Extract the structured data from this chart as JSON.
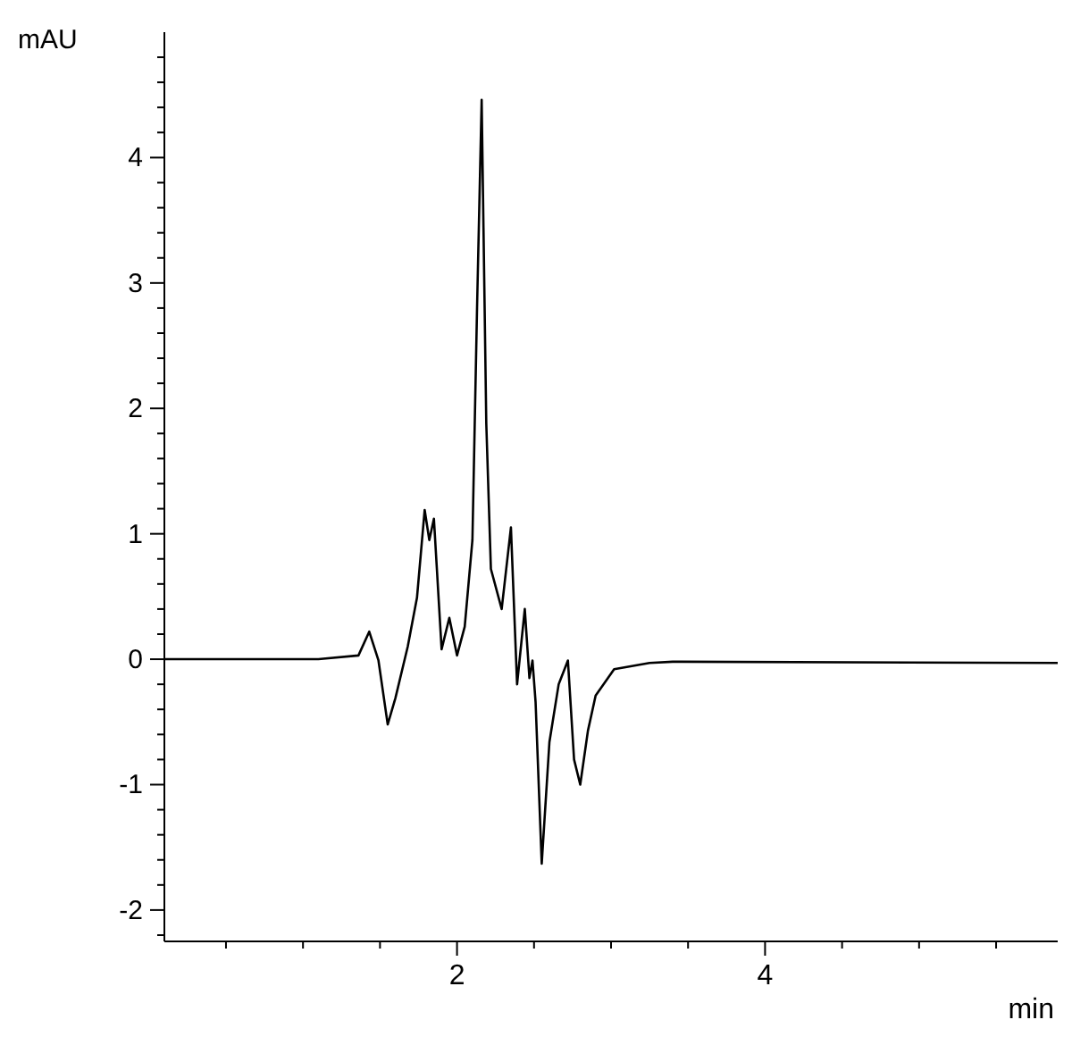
{
  "chart_data": {
    "type": "line",
    "xlabel": "min",
    "ylabel": "mAU",
    "grid": false,
    "legend": false,
    "marker": "none",
    "line_style": "solid",
    "xlim": [
      0.1,
      5.9
    ],
    "ylim": [
      -2.25,
      5
    ],
    "xticks": [
      {
        "value": 0.5,
        "label": null
      },
      {
        "value": 1,
        "label": null
      },
      {
        "value": 1.5,
        "label": null
      },
      2,
      {
        "value": 2.5,
        "label": null
      },
      {
        "value": 3,
        "label": null
      },
      {
        "value": 3.5,
        "label": null
      },
      4,
      {
        "value": 4.5,
        "label": null
      },
      {
        "value": 5,
        "label": null
      },
      {
        "value": 5.5,
        "label": null
      }
    ],
    "yticks": [
      {
        "value": -2.2,
        "label": null
      },
      -2,
      {
        "value": -1.8,
        "label": null
      },
      {
        "value": -1.6,
        "label": null
      },
      {
        "value": -1.4,
        "label": null
      },
      {
        "value": -1.2,
        "label": null
      },
      -1,
      {
        "value": -0.8,
        "label": null
      },
      {
        "value": -0.6,
        "label": null
      },
      {
        "value": -0.4,
        "label": null
      },
      {
        "value": -0.2,
        "label": null
      },
      0,
      {
        "value": 0.2,
        "label": null
      },
      {
        "value": 0.4,
        "label": null
      },
      {
        "value": 0.6,
        "label": null
      },
      {
        "value": 0.8,
        "label": null
      },
      1,
      {
        "value": 1.2,
        "label": null
      },
      {
        "value": 1.4,
        "label": null
      },
      {
        "value": 1.6,
        "label": null
      },
      {
        "value": 1.8,
        "label": null
      },
      2,
      {
        "value": 2.2,
        "label": null
      },
      {
        "value": 2.4,
        "label": null
      },
      {
        "value": 2.6,
        "label": null
      },
      {
        "value": 2.8,
        "label": null
      },
      3,
      {
        "value": 3.2,
        "label": null
      },
      {
        "value": 3.4,
        "label": null
      },
      {
        "value": 3.6,
        "label": null
      },
      {
        "value": 3.8,
        "label": null
      },
      4,
      {
        "value": 4.2,
        "label": null
      },
      {
        "value": 4.4,
        "label": null
      },
      {
        "value": 4.6,
        "label": null
      },
      {
        "value": 4.8,
        "label": null
      }
    ],
    "x": [
      0.1,
      1.1,
      1.36,
      1.43,
      1.49,
      1.55,
      1.6,
      1.68,
      1.74,
      1.79,
      1.82,
      1.85,
      1.9,
      1.95,
      2.0,
      2.05,
      2.1,
      2.13,
      2.16,
      2.19,
      2.22,
      2.29,
      2.35,
      2.39,
      2.44,
      2.47,
      2.49,
      2.51,
      2.55,
      2.6,
      2.66,
      2.72,
      2.76,
      2.8,
      2.85,
      2.9,
      3.02,
      3.25,
      3.4,
      5.9
    ],
    "series": [
      {
        "color": "#000000",
        "values": [
          0,
          0,
          0.03,
          0.22,
          -0.01,
          -0.52,
          -0.31,
          0.1,
          0.49,
          1.19,
          0.95,
          1.12,
          0.08,
          0.33,
          0.03,
          0.26,
          0.95,
          2.8,
          4.46,
          1.88,
          0.72,
          0.4,
          1.05,
          -0.2,
          0.4,
          -0.15,
          -0.01,
          -0.34,
          -1.63,
          -0.66,
          -0.2,
          -0.01,
          -0.8,
          -1.0,
          -0.57,
          -0.29,
          -0.08,
          -0.03,
          -0.02,
          -0.03
        ]
      }
    ]
  }
}
